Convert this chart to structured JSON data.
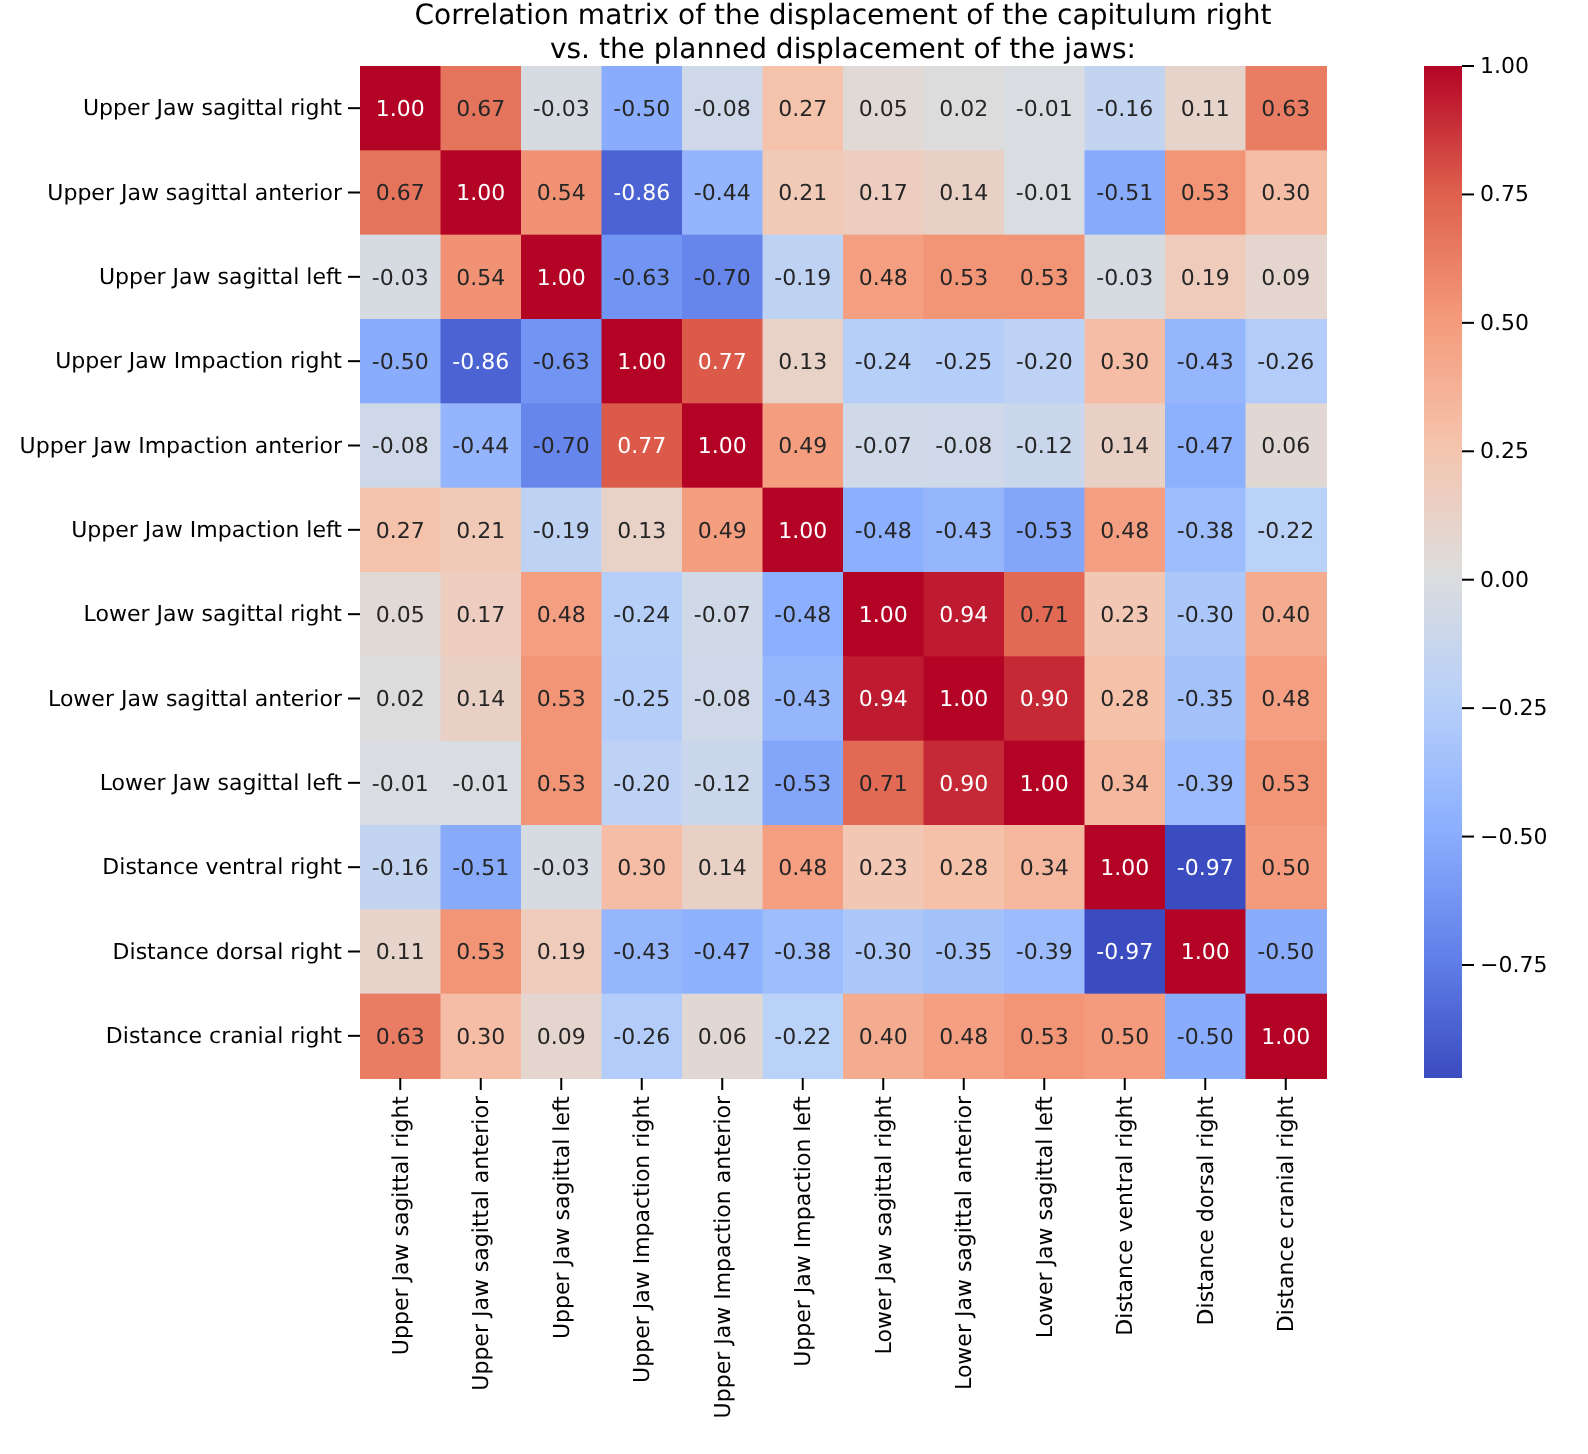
{
  "chart_data": {
    "type": "heatmap",
    "title": "Correlation matrix of the displacement of the capitulum right\nvs. the planned displacement of the jaws:",
    "categories": [
      "Upper Jaw sagittal right",
      "Upper Jaw sagittal anterior",
      "Upper Jaw sagittal left",
      "Upper Jaw Impaction right",
      "Upper Jaw Impaction anterior",
      "Upper Jaw Impaction left",
      "Lower Jaw sagittal right",
      "Lower Jaw sagittal anterior",
      "Lower Jaw sagittal left",
      "Distance ventral right",
      "Distance dorsal right",
      "Distance cranial right"
    ],
    "y_categories": [
      "Upper Jaw sagittal right",
      "Upper Jaw sagittal anterior",
      "Upper Jaw sagittal left",
      "Upper Jaw Impaction right",
      "Upper Jaw Impaction anterior",
      "Upper Jaw Impaction left",
      "Lower Jaw sagittal right",
      "Lower Jaw sagittal anterior",
      "Lower Jaw sagittal left",
      "Distance ventral right",
      "Distance dorsal right",
      "Distance cranial right"
    ],
    "cells": [
      [
        1.0,
        0.67,
        -0.03,
        -0.5,
        -0.08,
        0.27,
        0.05,
        0.02,
        -0.01,
        -0.16,
        0.11,
        0.63
      ],
      [
        0.67,
        1.0,
        0.54,
        -0.86,
        -0.44,
        0.21,
        0.17,
        0.14,
        -0.01,
        -0.51,
        0.53,
        0.3
      ],
      [
        -0.03,
        0.54,
        1.0,
        -0.63,
        -0.7,
        -0.19,
        0.48,
        0.53,
        0.53,
        -0.03,
        0.19,
        0.09
      ],
      [
        -0.5,
        -0.86,
        -0.63,
        1.0,
        0.77,
        0.13,
        -0.24,
        -0.25,
        -0.2,
        0.3,
        -0.43,
        -0.26
      ],
      [
        -0.08,
        -0.44,
        -0.7,
        0.77,
        1.0,
        0.49,
        -0.07,
        -0.08,
        -0.12,
        0.14,
        -0.47,
        0.06
      ],
      [
        0.27,
        0.21,
        -0.19,
        0.13,
        0.49,
        1.0,
        -0.48,
        -0.43,
        -0.53,
        0.48,
        -0.38,
        -0.22
      ],
      [
        0.05,
        0.17,
        0.48,
        -0.24,
        -0.07,
        -0.48,
        1.0,
        0.94,
        0.71,
        0.23,
        -0.3,
        0.4
      ],
      [
        0.02,
        0.14,
        0.53,
        -0.25,
        -0.08,
        -0.43,
        0.94,
        1.0,
        0.9,
        0.28,
        -0.35,
        0.48
      ],
      [
        -0.01,
        -0.01,
        0.53,
        -0.2,
        -0.12,
        -0.53,
        0.71,
        0.9,
        1.0,
        0.34,
        -0.39,
        0.53
      ],
      [
        -0.16,
        -0.51,
        -0.03,
        0.3,
        0.14,
        0.48,
        0.23,
        0.28,
        0.34,
        1.0,
        -0.97,
        0.5
      ],
      [
        0.11,
        0.53,
        0.19,
        -0.43,
        -0.47,
        -0.38,
        -0.3,
        -0.35,
        -0.39,
        -0.97,
        1.0,
        -0.5
      ],
      [
        0.63,
        0.3,
        0.09,
        -0.26,
        0.06,
        -0.22,
        0.4,
        0.48,
        0.53,
        0.5,
        -0.5,
        1.0
      ]
    ],
    "clim": [
      -0.97,
      1.0
    ],
    "cticks": [
      {
        "value": -0.75,
        "label": "−0.75"
      },
      {
        "value": -0.5,
        "label": "−0.50"
      },
      {
        "value": -0.25,
        "label": "−0.25"
      },
      {
        "value": 0,
        "label": "0.00"
      },
      {
        "value": 0.25,
        "label": "0.25"
      },
      {
        "value": 0.5,
        "label": "0.50"
      },
      {
        "value": 0.75,
        "label": "0.75"
      },
      {
        "value": 1.0,
        "label": "1.00"
      }
    ],
    "cell_labels": [
      [
        "1.00",
        "0.67",
        "-0.03",
        "-0.50",
        "-0.08",
        "0.27",
        "0.05",
        "0.02",
        "-0.01",
        "-0.16",
        "0.11",
        "0.63"
      ],
      [
        "0.67",
        "1.00",
        "0.54",
        "-0.86",
        "-0.44",
        "0.21",
        "0.17",
        "0.14",
        "-0.01",
        "-0.51",
        "0.53",
        "0.30"
      ],
      [
        "-0.03",
        "0.54",
        "1.00",
        "-0.63",
        "-0.70",
        "-0.19",
        "0.48",
        "0.53",
        "0.53",
        "-0.03",
        "0.19",
        "0.09"
      ],
      [
        "-0.50",
        "-0.86",
        "-0.63",
        "1.00",
        "0.77",
        "0.13",
        "-0.24",
        "-0.25",
        "-0.20",
        "0.30",
        "-0.43",
        "-0.26"
      ],
      [
        "-0.08",
        "-0.44",
        "-0.70",
        "0.77",
        "1.00",
        "0.49",
        "-0.07",
        "-0.08",
        "-0.12",
        "0.14",
        "-0.47",
        "0.06"
      ],
      [
        "0.27",
        "0.21",
        "-0.19",
        "0.13",
        "0.49",
        "1.00",
        "-0.48",
        "-0.43",
        "-0.53",
        "0.48",
        "-0.38",
        "-0.22"
      ],
      [
        "0.05",
        "0.17",
        "0.48",
        "-0.24",
        "-0.07",
        "-0.48",
        "1.00",
        "0.94",
        "0.71",
        "0.23",
        "-0.30",
        "0.40"
      ],
      [
        "0.02",
        "0.14",
        "0.53",
        "-0.25",
        "-0.08",
        "-0.43",
        "0.94",
        "1.00",
        "0.90",
        "0.28",
        "-0.35",
        "0.48"
      ],
      [
        "-0.01",
        "-0.01",
        "0.53",
        "-0.20",
        "-0.12",
        "-0.53",
        "0.71",
        "0.90",
        "1.00",
        "0.34",
        "-0.39",
        "0.53"
      ],
      [
        "-0.16",
        "-0.51",
        "-0.03",
        "0.30",
        "0.14",
        "0.48",
        "0.23",
        "0.28",
        "0.34",
        "1.00",
        "-0.97",
        "0.50"
      ],
      [
        "0.11",
        "0.53",
        "0.19",
        "-0.43",
        "-0.47",
        "-0.38",
        "-0.30",
        "-0.35",
        "-0.39",
        "-0.97",
        "1.00",
        "-0.50"
      ],
      [
        "0.63",
        "0.30",
        "0.09",
        "-0.26",
        "0.06",
        "-0.22",
        "0.40",
        "0.48",
        "0.53",
        "0.50",
        "-0.50",
        "1.00"
      ]
    ]
  }
}
